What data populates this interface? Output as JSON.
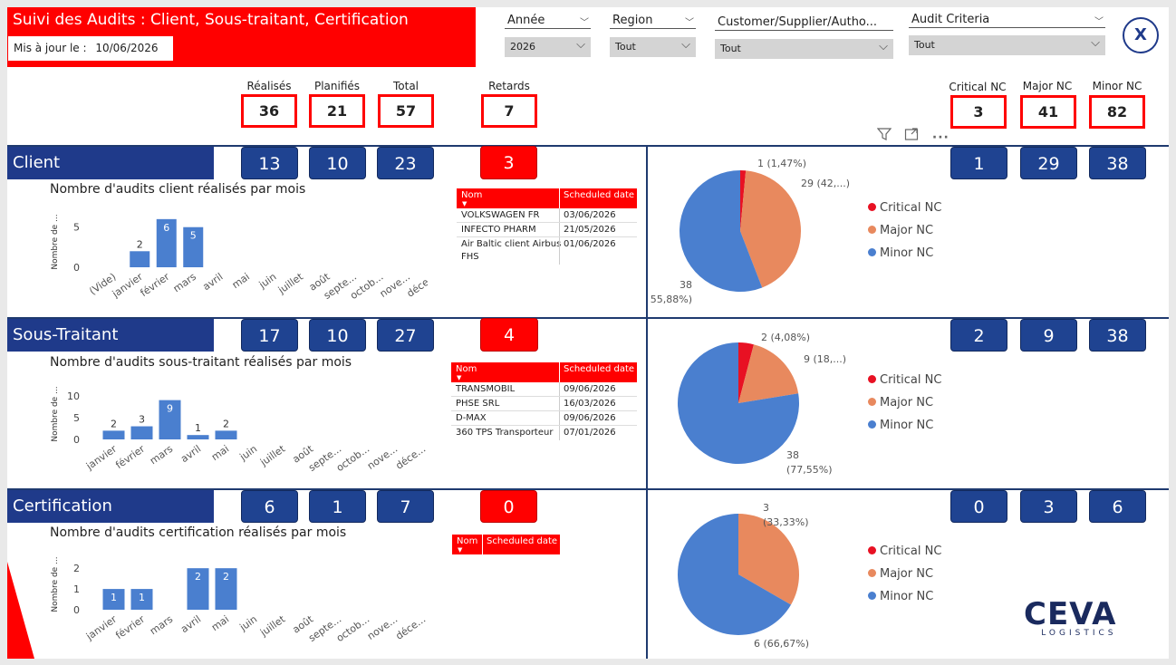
{
  "header": {
    "title": "Suivi des Audits : Client, Sous-traitant, Certification",
    "updated_label": "Mis à jour  le :",
    "updated_value": "10/06/2026"
  },
  "filters": [
    {
      "label": "Année",
      "value": "2026"
    },
    {
      "label": "Region",
      "value": "Tout"
    },
    {
      "label": "Customer/Supplier/Autho...",
      "value": "Tout"
    },
    {
      "label": "Audit Criteria",
      "value": "Tout"
    }
  ],
  "close_label": "X",
  "kpis": {
    "realises": {
      "label": "Réalisés",
      "value": "36"
    },
    "planifies": {
      "label": "Planifiés",
      "value": "21"
    },
    "total": {
      "label": "Total",
      "value": "57"
    },
    "retards": {
      "label": "Retards",
      "value": "7"
    },
    "critical": {
      "label": "Critical NC",
      "value": "3"
    },
    "major": {
      "label": "Major NC",
      "value": "41"
    },
    "minor": {
      "label": "Minor NC",
      "value": "82"
    }
  },
  "toolbar_icons": [
    "filter-icon",
    "focus-mode-icon",
    "more-options-icon"
  ],
  "colors": {
    "red": "#ff0000",
    "navy": "#1f4391",
    "bar": "#4a7fcf",
    "critical": "#e81123",
    "major": "#e8895e",
    "minor": "#4a7fcf"
  },
  "legend": [
    "Critical NC",
    "Major NC",
    "Minor NC"
  ],
  "table_headers": {
    "nom": "Nom",
    "date": "Scheduled date"
  },
  "sections": [
    {
      "name": "Client",
      "counts": [
        "13",
        "10",
        "23"
      ],
      "retards": "3",
      "nc": [
        "1",
        "29",
        "38"
      ],
      "chart_title": "Nombre d'audits client réalisés par mois",
      "ylabel": "Nombre de ...",
      "yticks": [
        "0",
        "5"
      ],
      "rows": [
        {
          "nom": "VOLKSWAGEN FR",
          "date": "03/06/2026"
        },
        {
          "nom": "INFECTO PHARM",
          "date": "21/05/2026"
        },
        {
          "nom": "Air Baltic client Airbus",
          "date": "01/06/2026"
        },
        {
          "nom": "FHS",
          "date": ""
        }
      ],
      "pie_labels": [
        "1 (1,47%)",
        "29 (42,...)",
        "38",
        "(55,88%)"
      ]
    },
    {
      "name": "Sous-Traitant",
      "counts": [
        "17",
        "10",
        "27"
      ],
      "retards": "4",
      "nc": [
        "2",
        "9",
        "38"
      ],
      "chart_title": "Nombre d'audits sous-traitant réalisés par mois",
      "ylabel": "Nombre de ...",
      "yticks": [
        "0",
        "5",
        "10"
      ],
      "rows": [
        {
          "nom": "TRANSMOBIL",
          "date": "09/06/2026"
        },
        {
          "nom": "PHSE SRL",
          "date": "16/03/2026"
        },
        {
          "nom": "D-MAX",
          "date": "09/06/2026"
        },
        {
          "nom": "360 TPS Transporteur",
          "date": "07/01/2026"
        }
      ],
      "pie_labels": [
        "2 (4,08%)",
        "9 (18,...)",
        "38",
        "(77,55%)"
      ]
    },
    {
      "name": "Certification",
      "counts": [
        "6",
        "1",
        "7"
      ],
      "retards": "0",
      "nc": [
        "0",
        "3",
        "6"
      ],
      "chart_title": "Nombre d'audits certification réalisés par mois",
      "ylabel": "Nombre de ...",
      "yticks": [
        "0",
        "1",
        "2"
      ],
      "rows": [],
      "pie_labels": [
        "3",
        "(33,33%)",
        "6 (66,67%)"
      ]
    }
  ],
  "chart_data": [
    {
      "type": "bar",
      "title": "Nombre d'audits client réalisés par mois",
      "ylabel": "Nombre de ...",
      "categories": [
        "(Vide)",
        "janvier",
        "février",
        "mars",
        "avril",
        "mai",
        "juin",
        "juillet",
        "août",
        "septe...",
        "octob...",
        "nove...",
        "déce..."
      ],
      "values": [
        0,
        2,
        6,
        5,
        0,
        0,
        0,
        0,
        0,
        0,
        0,
        0,
        0
      ],
      "ylim": [
        0,
        7
      ]
    },
    {
      "type": "bar",
      "title": "Nombre d'audits sous-traitant réalisés par mois",
      "ylabel": "Nombre de ...",
      "categories": [
        "janvier",
        "février",
        "mars",
        "avril",
        "mai",
        "juin",
        "juillet",
        "août",
        "septe...",
        "octob...",
        "nove...",
        "déce..."
      ],
      "values": [
        2,
        3,
        9,
        1,
        2,
        0,
        0,
        0,
        0,
        0,
        0,
        0
      ],
      "ylim": [
        0,
        11
      ]
    },
    {
      "type": "bar",
      "title": "Nombre d'audits certification réalisés par mois",
      "ylabel": "Nombre de ...",
      "categories": [
        "janvier",
        "février",
        "mars",
        "avril",
        "mai",
        "juin",
        "juillet",
        "août",
        "septe...",
        "octob...",
        "nove...",
        "déce..."
      ],
      "values": [
        1,
        1,
        0,
        2,
        2,
        0,
        0,
        0,
        0,
        0,
        0,
        0
      ],
      "ylim": [
        0,
        2.4
      ]
    },
    {
      "type": "pie",
      "categories": [
        "Critical NC",
        "Major NC",
        "Minor NC"
      ],
      "values": [
        1,
        29,
        38
      ]
    },
    {
      "type": "pie",
      "categories": [
        "Critical NC",
        "Major NC",
        "Minor NC"
      ],
      "values": [
        2,
        9,
        38
      ]
    },
    {
      "type": "pie",
      "categories": [
        "Critical NC",
        "Major NC",
        "Minor NC"
      ],
      "values": [
        0,
        3,
        6
      ]
    }
  ],
  "logo": {
    "word": "CEVA",
    "sub": "LOGISTICS"
  }
}
